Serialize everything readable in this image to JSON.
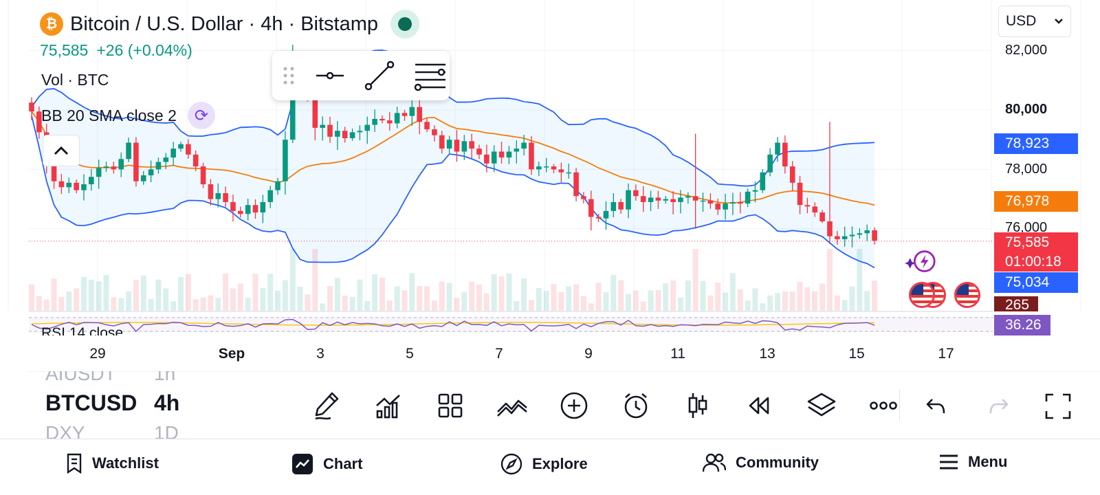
{
  "header": {
    "coin_symbol": "₿",
    "title": "Bitcoin / U.S. Dollar · 4h · Bitstamp",
    "last_price": "75,585",
    "change": "+26 (+0.04%)",
    "volume_label": "Vol · BTC",
    "bb_label": "BB 20 SMA close 2"
  },
  "currency_select": {
    "value": "USD"
  },
  "price_axis": {
    "labels": [
      "82,000",
      "80,000",
      "78,000",
      "76,000"
    ],
    "tags": {
      "bb_upper": "78,923",
      "bb_basis": "76,978",
      "last_price": "75,585",
      "countdown": "01:00:18",
      "bb_lower": "75,034",
      "volume": "265",
      "rsi": "36.26"
    }
  },
  "rsi_label": "RSI 14 close",
  "time_axis": [
    "29",
    "Sep",
    "3",
    "5",
    "7",
    "9",
    "11",
    "13",
    "15",
    "17"
  ],
  "symbol_picker": [
    {
      "symbol": "AIUSDT",
      "interval": "1h"
    },
    {
      "symbol": "BTCUSD",
      "interval": "4h"
    },
    {
      "symbol": "DXY",
      "interval": "1D"
    }
  ],
  "icons": {
    "draw_toolbar": [
      "drag-handle-icon",
      "horizontal-line-icon",
      "trend-line-icon",
      "fib-retracement-icon"
    ],
    "tools": [
      "pencil-icon",
      "indicators-icon",
      "templates-icon",
      "compare-icon",
      "add-icon",
      "alert-icon",
      "bar-style-icon",
      "replay-icon",
      "layers-icon",
      "more-icon"
    ]
  },
  "bottom_nav": [
    {
      "label": "Watchlist",
      "icon": "watchlist-icon"
    },
    {
      "label": "Chart",
      "icon": "chart-icon"
    },
    {
      "label": "Explore",
      "icon": "explore-icon"
    },
    {
      "label": "Community",
      "icon": "community-icon"
    },
    {
      "label": "Menu",
      "icon": "menu-icon"
    }
  ],
  "colors": {
    "up": "#089981",
    "down": "#f23645",
    "bb_band": "#2962ff",
    "bb_basis": "#f57c0c",
    "rsi_line": "#7e57c2",
    "accent": "#2962ff"
  },
  "chart_data": {
    "type": "candlestick",
    "symbol": "BTCUSD",
    "interval": "4h",
    "x_ticks": [
      "29",
      "Sep",
      "3",
      "5",
      "7",
      "9",
      "11",
      "13",
      "15",
      "17"
    ],
    "y_ticks": [
      76000,
      78000,
      80000,
      82000
    ],
    "ylim": [
      74200,
      83300
    ],
    "last_price": 75585,
    "overlays": [
      "Bollinger Bands (20, 2)"
    ],
    "indicators": [
      "Volume",
      "RSI 14"
    ],
    "closes": [
      79950,
      79250,
      78250,
      77600,
      77400,
      77550,
      77300,
      77500,
      77750,
      78050,
      78100,
      78000,
      78350,
      78900,
      77600,
      77800,
      78000,
      78250,
      78400,
      78700,
      78850,
      78500,
      78100,
      77500,
      77000,
      77200,
      76900,
      76600,
      76500,
      76800,
      76550,
      76900,
      77300,
      77600,
      79000,
      81500,
      81700,
      80500,
      79400,
      79500,
      79100,
      79300,
      79050,
      79250,
      79300,
      79500,
      79700,
      79650,
      79550,
      79900,
      79800,
      80100,
      79600,
      79350,
      79150,
      78700,
      79000,
      78600,
      78950,
      78700,
      78500,
      78200,
      78600,
      78400,
      78600,
      78700,
      78900,
      78000,
      78100,
      78100,
      78000,
      77900,
      77900,
      77100,
      77000,
      76400,
      76350,
      76600,
      76900,
      76650,
      77300,
      77100,
      76900,
      77050,
      76950,
      77000,
      76900,
      77050,
      77100,
      76950,
      76950,
      76850,
      76650,
      76850,
      76900,
      76850,
      77250,
      77300,
      77900,
      78500,
      78900,
      78100,
      77550,
      76800,
      76750,
      76550,
      76250,
      75750,
      75650,
      75750,
      75800,
      75850,
      75950,
      75600
    ]
  }
}
